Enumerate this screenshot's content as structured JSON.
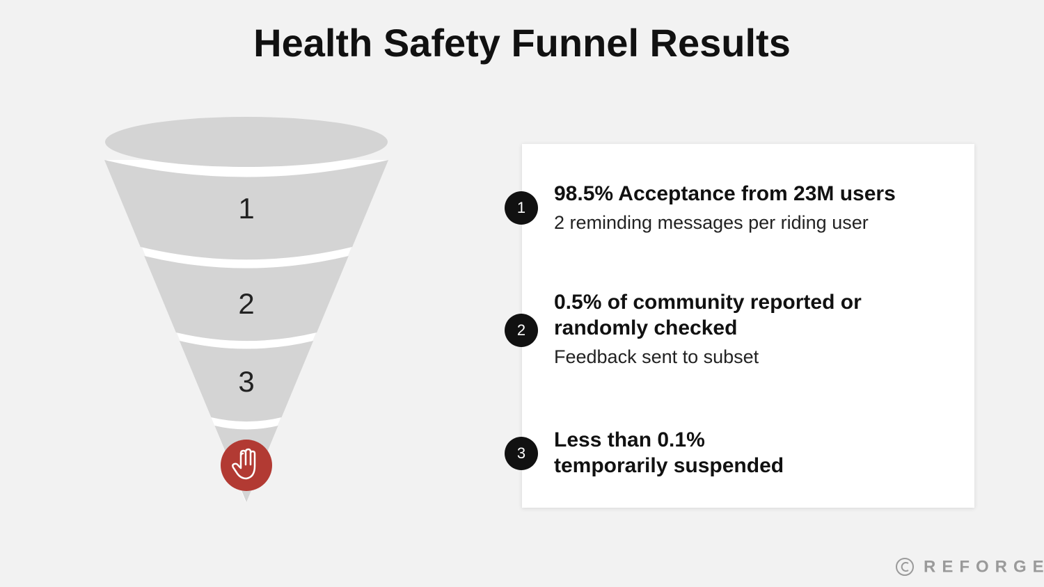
{
  "title": "Health Safety Funnel Results",
  "funnel": {
    "stages": [
      "1",
      "2",
      "3"
    ]
  },
  "items": [
    {
      "number": "1",
      "heading_lines": [
        "98.5% Acceptance from 23M users"
      ],
      "detail": "2 reminding messages per riding user"
    },
    {
      "number": "2",
      "heading_lines": [
        "0.5% of community reported or",
        "randomly checked"
      ],
      "detail": "Feedback sent to subset"
    },
    {
      "number": "3",
      "heading_lines": [
        "Less than 0.1%",
        "temporarily suspended"
      ]
    }
  ],
  "footer": {
    "brand": "REFORGE"
  }
}
